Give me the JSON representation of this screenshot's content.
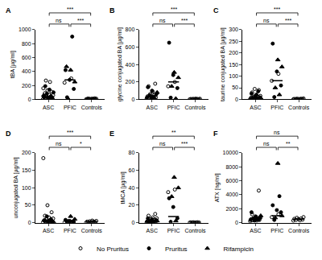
{
  "chart_data": [
    {
      "type": "scatter",
      "title": "A",
      "y_label": "tBA [µg/ml]",
      "categories": [
        "ASC",
        "PFIC",
        "Controls"
      ],
      "ylim": [
        0,
        1000
      ],
      "yticks": [
        0,
        200,
        400,
        600,
        800,
        1000
      ],
      "series": [
        {
          "name": "No Pruritus",
          "marker": "circle-open",
          "color": "#000000",
          "values": [
            [
              5,
              10,
              15,
              20,
              25,
              30,
              40,
              50,
              60,
              70,
              90,
              110,
              130,
              160,
              250,
              270
            ],
            [
              240,
              300
            ],
            [
              2,
              3,
              4,
              5,
              5,
              6,
              7,
              8,
              9,
              10,
              12,
              15
            ]
          ]
        },
        {
          "name": "Pruritus",
          "marker": "circle",
          "color": "#000000",
          "values": [
            [
              8,
              20,
              35,
              45,
              80,
              100,
              140,
              190
            ],
            [
              30,
              150,
              280,
              420,
              900
            ],
            []
          ]
        },
        {
          "name": "Rifampicin",
          "marker": "triangle-up",
          "color": "#000000",
          "values": [
            [
              15,
              30,
              60
            ],
            [
              10,
              250,
              420,
              470
            ],
            []
          ]
        }
      ],
      "medians": [
        40,
        280,
        5
      ],
      "comparisons": [
        {
          "groups": [
            "ASC",
            "PFIC"
          ],
          "label": "ns"
        },
        {
          "groups": [
            "ASC",
            "Controls"
          ],
          "label": "***"
        },
        {
          "groups": [
            "PFIC",
            "Controls"
          ],
          "label": "***"
        }
      ]
    },
    {
      "type": "scatter",
      "title": "B",
      "y_label": "glycine conjugated BA [µg/ml]",
      "categories": [
        "ASC",
        "PFIC",
        "Controls"
      ],
      "ylim": [
        0,
        800
      ],
      "yticks": [
        0,
        200,
        400,
        600,
        800
      ],
      "series": [
        {
          "name": "No Pruritus",
          "marker": "circle-open",
          "color": "#000000",
          "values": [
            [
              5,
              10,
              15,
              20,
              25,
              35,
              50,
              60,
              70,
              90,
              150,
              180
            ],
            [
              150,
              200
            ],
            [
              1,
              2,
              3,
              3,
              4,
              5,
              5,
              6,
              7,
              8
            ]
          ]
        },
        {
          "name": "Pruritus",
          "marker": "circle",
          "color": "#000000",
          "values": [
            [
              10,
              20,
              30,
              45,
              60,
              100,
              140
            ],
            [
              20,
              130,
              280,
              650
            ],
            []
          ]
        },
        {
          "name": "Rifampicin",
          "marker": "triangle-up",
          "color": "#000000",
          "values": [
            [
              15,
              40,
              80
            ],
            [
              10,
              150,
              250,
              310
            ],
            []
          ]
        }
      ],
      "medians": [
        40,
        200,
        4
      ],
      "comparisons": [
        {
          "groups": [
            "ASC",
            "PFIC"
          ],
          "label": "ns"
        },
        {
          "groups": [
            "ASC",
            "Controls"
          ],
          "label": "***"
        },
        {
          "groups": [
            "PFIC",
            "Controls"
          ],
          "label": "***"
        }
      ]
    },
    {
      "type": "scatter",
      "title": "C",
      "y_label": "taurine conjugated BA [µg/ml]",
      "categories": [
        "ASC",
        "PFIC",
        "Controls"
      ],
      "ylim": [
        0,
        300
      ],
      "yticks": [
        0,
        50,
        100,
        150,
        200,
        250,
        300
      ],
      "series": [
        {
          "name": "No Pruritus",
          "marker": "circle-open",
          "color": "#000000",
          "values": [
            [
              1,
              2,
              3,
              5,
              6,
              8,
              10,
              12,
              15,
              20,
              30,
              40,
              45
            ],
            [
              80,
              110
            ],
            [
              0.5,
              1,
              1,
              1.5,
              2,
              2,
              3,
              3,
              4
            ]
          ]
        },
        {
          "name": "Pruritus",
          "marker": "circle",
          "color": "#000000",
          "values": [
            [
              2,
              4,
              7,
              9,
              15,
              25,
              35
            ],
            [
              10,
              60,
              120,
              240
            ],
            []
          ]
        },
        {
          "name": "Rifampicin",
          "marker": "triangle-up",
          "color": "#000000",
          "values": [
            [
              3,
              6,
              20
            ],
            [
              20,
              50,
              140,
              170
            ],
            []
          ]
        }
      ],
      "medians": [
        8,
        80,
        1.5
      ],
      "comparisons": [
        {
          "groups": [
            "ASC",
            "PFIC"
          ],
          "label": "ns"
        },
        {
          "groups": [
            "ASC",
            "Controls"
          ],
          "label": "***"
        },
        {
          "groups": [
            "PFIC",
            "Controls"
          ],
          "label": "***"
        }
      ]
    },
    {
      "type": "scatter",
      "title": "D",
      "y_label": "unconjugated BA [µg/ml]",
      "categories": [
        "ASC",
        "PFIC",
        "Controls"
      ],
      "ylim": [
        0,
        200
      ],
      "yticks": [
        0,
        50,
        100,
        150,
        200
      ],
      "series": [
        {
          "name": "No Pruritus",
          "marker": "circle-open",
          "color": "#000000",
          "values": [
            [
              1,
              2,
              3,
              4,
              5,
              6,
              8,
              10,
              12,
              15,
              20,
              30,
              50,
              185
            ],
            [
              1,
              3
            ],
            [
              0.5,
              1,
              1,
              2,
              2,
              3,
              3,
              4,
              5,
              6
            ]
          ]
        },
        {
          "name": "Pruritus",
          "marker": "circle",
          "color": "#000000",
          "values": [
            [
              1,
              2,
              3,
              5,
              7,
              10,
              18
            ],
            [
              0.5,
              2,
              5,
              8
            ],
            []
          ]
        },
        {
          "name": "Rifampicin",
          "marker": "triangle-up",
          "color": "#000000",
          "values": [
            [
              2,
              4,
              6
            ],
            [
              2,
              4,
              10,
              18
            ],
            []
          ]
        }
      ],
      "medians": [
        5,
        3,
        2
      ],
      "comparisons": [
        {
          "groups": [
            "ASC",
            "PFIC"
          ],
          "label": "ns"
        },
        {
          "groups": [
            "ASC",
            "Controls"
          ],
          "label": "***"
        },
        {
          "groups": [
            "PFIC",
            "Controls"
          ],
          "label": "*"
        }
      ]
    },
    {
      "type": "scatter",
      "title": "E",
      "y_label": "tMCA [µg/ml]",
      "categories": [
        "ASC",
        "PFIC",
        "Controls"
      ],
      "ylim": [
        0,
        80
      ],
      "yticks": [
        0,
        20,
        40,
        60,
        80
      ],
      "series": [
        {
          "name": "No Pruritus",
          "marker": "circle-open",
          "color": "#000000",
          "values": [
            [
              0.2,
              0.5,
              1,
              1,
              2,
              2,
              3,
              4,
              5,
              6,
              8,
              10
            ],
            [
              35,
              38
            ],
            [
              0.1,
              0.2,
              0.2,
              0.3,
              0.3,
              0.4,
              0.5,
              0.5
            ]
          ]
        },
        {
          "name": "Pruritus",
          "marker": "circle",
          "color": "#000000",
          "values": [
            [
              0.5,
              1,
              1.5,
              2,
              3,
              4,
              5
            ],
            [
              1,
              5,
              18,
              28
            ],
            []
          ]
        },
        {
          "name": "Rifampicin",
          "marker": "triangle-up",
          "color": "#000000",
          "values": [
            [
              0.5,
              1,
              2
            ],
            [
              2,
              30,
              40,
              52
            ],
            []
          ]
        }
      ],
      "medians": [
        1.5,
        7,
        0.3
      ],
      "comparisons": [
        {
          "groups": [
            "ASC",
            "PFIC"
          ],
          "label": "ns"
        },
        {
          "groups": [
            "ASC",
            "Controls"
          ],
          "label": "**"
        },
        {
          "groups": [
            "PFIC",
            "Controls"
          ],
          "label": "***"
        }
      ]
    },
    {
      "type": "scatter",
      "title": "F",
      "y_label": "ATX [ng/ml]",
      "categories": [
        "ASC",
        "PFIC",
        "Controls"
      ],
      "ylim": [
        0,
        10000
      ],
      "yticks": [
        0,
        2000,
        4000,
        6000,
        8000,
        10000
      ],
      "series": [
        {
          "name": "No Pruritus",
          "marker": "circle-open",
          "color": "#000000",
          "values": [
            [
              200,
              300,
              350,
              400,
              450,
              500,
              550,
              600,
              700,
              800,
              1200,
              4600
            ],
            [
              800,
              1200
            ],
            [
              300,
              350,
              400,
              450,
              500,
              550,
              600,
              700,
              800
            ]
          ]
        },
        {
          "name": "Pruritus",
          "marker": "circle",
          "color": "#000000",
          "values": [
            [
              300,
              400,
              500,
              600,
              700,
              900,
              1500
            ],
            [
              400,
              1500,
              1800,
              2500,
              3800
            ],
            []
          ]
        },
        {
          "name": "Rifampicin",
          "marker": "triangle-up",
          "color": "#000000",
          "values": [
            [
              400,
              600,
              1000
            ],
            [
              700,
              1000,
              8500
            ],
            []
          ]
        }
      ],
      "medians": [
        550,
        1000,
        500
      ],
      "comparisons": [
        {
          "groups": [
            "ASC",
            "PFIC"
          ],
          "label": "ns"
        },
        {
          "groups": [
            "ASC",
            "Controls"
          ],
          "label": "ns"
        },
        {
          "groups": [
            "PFIC",
            "Controls"
          ],
          "label": "**"
        }
      ]
    }
  ]
}
